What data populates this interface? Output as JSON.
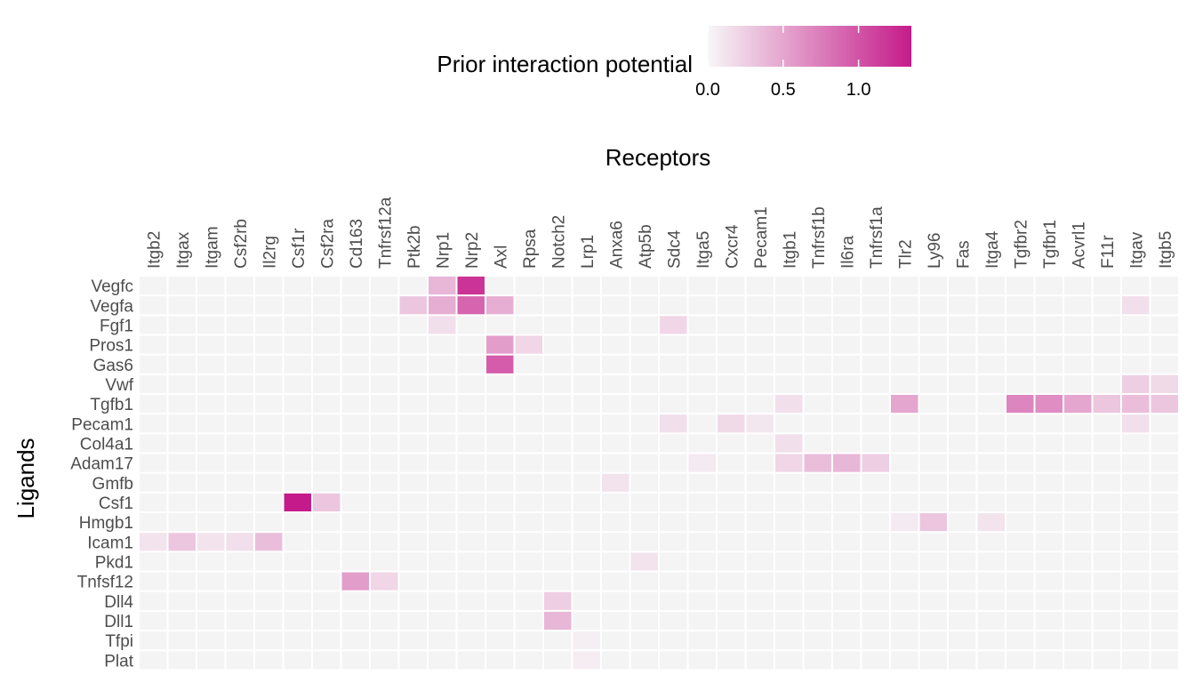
{
  "chart_data": {
    "type": "heatmap",
    "title": "",
    "xlabel": "Receptors",
    "ylabel": "Ligands",
    "x_axis_position": "top",
    "legend": {
      "title": "Prior interaction potential",
      "placement": "top",
      "ticks": [
        "0.0",
        "0.5",
        "1.0"
      ],
      "range": [
        0,
        1.35
      ],
      "low_color": "#f7f7f7",
      "high_color": "#c51b8a"
    },
    "grid": false,
    "cell_border_color": "#ffffff",
    "empty_color": "#f4f4f4",
    "receptors": [
      "Itgb2",
      "Itgax",
      "Itgam",
      "Csf2rb",
      "Il2rg",
      "Csf1r",
      "Csf2ra",
      "Cd163",
      "Tnfrsf12a",
      "Ptk2b",
      "Nrp1",
      "Nrp2",
      "Axl",
      "Rpsa",
      "Notch2",
      "Lrp1",
      "Anxa6",
      "Atp5b",
      "Sdc4",
      "Itga5",
      "Cxcr4",
      "Pecam1",
      "Itgb1",
      "Tnfrsf1b",
      "Il6ra",
      "Tnfrsf1a",
      "Tlr2",
      "Ly96",
      "Fas",
      "Itga4",
      "Tgfbr2",
      "Tgfbr1",
      "Acvrl1",
      "F11r",
      "Itgav",
      "Itgb5"
    ],
    "ligands": [
      "Vegfc",
      "Vegfa",
      "Fgf1",
      "Pros1",
      "Gas6",
      "Vwf",
      "Tgfb1",
      "Pecam1",
      "Col4a1",
      "Adam17",
      "Gmfb",
      "Csf1",
      "Hmgb1",
      "Icam1",
      "Pkd1",
      "Tnfsf12",
      "Dll4",
      "Dll1",
      "Tfpi",
      "Plat"
    ],
    "values": [
      {
        "ligand": "Vegfc",
        "receptor": "Nrp1",
        "value": 0.4
      },
      {
        "ligand": "Vegfc",
        "receptor": "Nrp2",
        "value": 1.2
      },
      {
        "ligand": "Vegfa",
        "receptor": "Ptk2b",
        "value": 0.3
      },
      {
        "ligand": "Vegfa",
        "receptor": "Nrp1",
        "value": 0.45
      },
      {
        "ligand": "Vegfa",
        "receptor": "Nrp2",
        "value": 0.9
      },
      {
        "ligand": "Vegfa",
        "receptor": "Axl",
        "value": 0.45
      },
      {
        "ligand": "Vegfa",
        "receptor": "Itgav",
        "value": 0.15
      },
      {
        "ligand": "Fgf1",
        "receptor": "Nrp1",
        "value": 0.15
      },
      {
        "ligand": "Fgf1",
        "receptor": "Sdc4",
        "value": 0.2
      },
      {
        "ligand": "Pros1",
        "receptor": "Axl",
        "value": 0.55
      },
      {
        "ligand": "Pros1",
        "receptor": "Rpsa",
        "value": 0.2
      },
      {
        "ligand": "Gas6",
        "receptor": "Axl",
        "value": 0.95
      },
      {
        "ligand": "Vwf",
        "receptor": "Itgav",
        "value": 0.25
      },
      {
        "ligand": "Vwf",
        "receptor": "Itgb5",
        "value": 0.18
      },
      {
        "ligand": "Tgfb1",
        "receptor": "Itgb1",
        "value": 0.15
      },
      {
        "ligand": "Tgfb1",
        "receptor": "Tlr2",
        "value": 0.5
      },
      {
        "ligand": "Tgfb1",
        "receptor": "Tgfbr2",
        "value": 0.7
      },
      {
        "ligand": "Tgfb1",
        "receptor": "Tgfbr1",
        "value": 0.65
      },
      {
        "ligand": "Tgfb1",
        "receptor": "Acvrl1",
        "value": 0.5
      },
      {
        "ligand": "Tgfb1",
        "receptor": "F11r",
        "value": 0.3
      },
      {
        "ligand": "Tgfb1",
        "receptor": "Itgav",
        "value": 0.35
      },
      {
        "ligand": "Tgfb1",
        "receptor": "Itgb5",
        "value": 0.3
      },
      {
        "ligand": "Pecam1",
        "receptor": "Sdc4",
        "value": 0.15
      },
      {
        "ligand": "Pecam1",
        "receptor": "Cxcr4",
        "value": 0.18
      },
      {
        "ligand": "Pecam1",
        "receptor": "Pecam1",
        "value": 0.1
      },
      {
        "ligand": "Pecam1",
        "receptor": "Itgav",
        "value": 0.15
      },
      {
        "ligand": "Col4a1",
        "receptor": "Itgb1",
        "value": 0.15
      },
      {
        "ligand": "Adam17",
        "receptor": "Itga5",
        "value": 0.08
      },
      {
        "ligand": "Adam17",
        "receptor": "Itgb1",
        "value": 0.2
      },
      {
        "ligand": "Adam17",
        "receptor": "Tnfrsf1b",
        "value": 0.35
      },
      {
        "ligand": "Adam17",
        "receptor": "Il6ra",
        "value": 0.4
      },
      {
        "ligand": "Adam17",
        "receptor": "Tnfrsf1a",
        "value": 0.25
      },
      {
        "ligand": "Gmfb",
        "receptor": "Anxa6",
        "value": 0.12
      },
      {
        "ligand": "Csf1",
        "receptor": "Csf1r",
        "value": 1.35
      },
      {
        "ligand": "Csf1",
        "receptor": "Csf2ra",
        "value": 0.3
      },
      {
        "ligand": "Hmgb1",
        "receptor": "Tlr2",
        "value": 0.08
      },
      {
        "ligand": "Hmgb1",
        "receptor": "Ly96",
        "value": 0.3
      },
      {
        "ligand": "Hmgb1",
        "receptor": "Itga4",
        "value": 0.12
      },
      {
        "ligand": "Icam1",
        "receptor": "Itgb2",
        "value": 0.12
      },
      {
        "ligand": "Icam1",
        "receptor": "Itgax",
        "value": 0.3
      },
      {
        "ligand": "Icam1",
        "receptor": "Itgam",
        "value": 0.12
      },
      {
        "ligand": "Icam1",
        "receptor": "Csf2rb",
        "value": 0.15
      },
      {
        "ligand": "Icam1",
        "receptor": "Il2rg",
        "value": 0.35
      },
      {
        "ligand": "Pkd1",
        "receptor": "Atp5b",
        "value": 0.12
      },
      {
        "ligand": "Tnfsf12",
        "receptor": "Cd163",
        "value": 0.55
      },
      {
        "ligand": "Tnfsf12",
        "receptor": "Tnfrsf12a",
        "value": 0.2
      },
      {
        "ligand": "Dll4",
        "receptor": "Notch2",
        "value": 0.25
      },
      {
        "ligand": "Dll1",
        "receptor": "Notch2",
        "value": 0.4
      },
      {
        "ligand": "Tfpi",
        "receptor": "Lrp1",
        "value": 0.05
      },
      {
        "ligand": "Plat",
        "receptor": "Lrp1",
        "value": 0.06
      }
    ]
  }
}
